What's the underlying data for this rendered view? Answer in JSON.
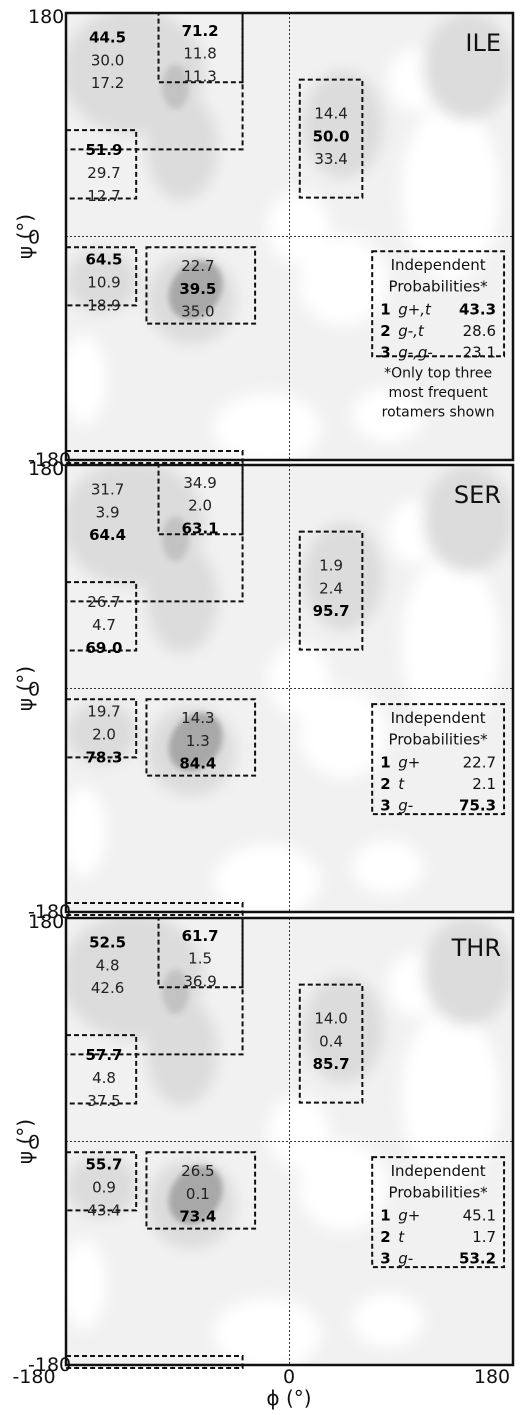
{
  "chart_data": [
    {
      "type": "heatmap",
      "residue": "ILE",
      "x_range": [
        -180,
        180
      ],
      "y_range": [
        -180,
        180
      ],
      "y_ticks": [
        "180",
        "0",
        "-180"
      ],
      "ylabel": "ψ (°)",
      "regions": [
        {
          "values": [
            "44.5",
            "30.0",
            "17.2"
          ],
          "bold": 0
        },
        {
          "values": [
            "71.2",
            "11.8",
            "11.3"
          ],
          "bold": 0
        },
        {
          "values": [
            "51.9",
            "29.7",
            "12.7"
          ],
          "bold": 0
        },
        {
          "values": [
            "14.4",
            "50.0",
            "33.4"
          ],
          "bold": 1
        },
        {
          "values": [
            "64.5",
            "10.9",
            "18.9"
          ],
          "bold": 0
        },
        {
          "values": [
            "22.7",
            "39.5",
            "35.0"
          ],
          "bold": 1
        }
      ],
      "legend": {
        "title_lines": [
          "Independent",
          "Probabilities*"
        ],
        "rows": [
          {
            "num": "1",
            "name": "g+,t",
            "value": "43.3",
            "bold": true
          },
          {
            "num": "2",
            "name": "g-,t",
            "value": "28.6",
            "bold": false
          },
          {
            "num": "3",
            "name": "g-,g-",
            "value": "23.1",
            "bold": false
          }
        ]
      },
      "note": [
        "*Only top three",
        "most frequent",
        "rotamers shown"
      ]
    },
    {
      "type": "heatmap",
      "residue": "SER",
      "x_range": [
        -180,
        180
      ],
      "y_range": [
        -180,
        180
      ],
      "y_ticks": [
        "180",
        "0",
        "-180"
      ],
      "ylabel": "ψ (°)",
      "regions": [
        {
          "values": [
            "31.7",
            "3.9",
            "64.4"
          ],
          "bold": 2
        },
        {
          "values": [
            "34.9",
            "2.0",
            "63.1"
          ],
          "bold": 2
        },
        {
          "values": [
            "26.7",
            "4.7",
            "69.0"
          ],
          "bold": 2
        },
        {
          "values": [
            "1.9",
            "2.4",
            "95.7"
          ],
          "bold": 2
        },
        {
          "values": [
            "19.7",
            "2.0",
            "78.3"
          ],
          "bold": 2
        },
        {
          "values": [
            "14.3",
            "1.3",
            "84.4"
          ],
          "bold": 2
        }
      ],
      "legend": {
        "title_lines": [
          "Independent",
          "Probabilities*"
        ],
        "rows": [
          {
            "num": "1",
            "name": "g+",
            "value": "22.7",
            "bold": false
          },
          {
            "num": "2",
            "name": "t",
            "value": "2.1",
            "bold": false
          },
          {
            "num": "3",
            "name": "g-",
            "value": "75.3",
            "bold": true
          }
        ]
      }
    },
    {
      "type": "heatmap",
      "residue": "THR",
      "x_range": [
        -180,
        180
      ],
      "y_range": [
        -180,
        180
      ],
      "y_ticks": [
        "180",
        "0",
        "-180"
      ],
      "ylabel": "ψ (°)",
      "regions": [
        {
          "values": [
            "52.5",
            "4.8",
            "42.6"
          ],
          "bold": 0
        },
        {
          "values": [
            "61.7",
            "1.5",
            "36.9"
          ],
          "bold": 0
        },
        {
          "values": [
            "57.7",
            "4.8",
            "37.5"
          ],
          "bold": 0
        },
        {
          "values": [
            "14.0",
            "0.4",
            "85.7"
          ],
          "bold": 2
        },
        {
          "values": [
            "55.7",
            "0.9",
            "43.4"
          ],
          "bold": 0
        },
        {
          "values": [
            "26.5",
            "0.1",
            "73.4"
          ],
          "bold": 2
        }
      ],
      "legend": {
        "title_lines": [
          "Independent",
          "Probabilities*"
        ],
        "rows": [
          {
            "num": "1",
            "name": "g+",
            "value": "45.1",
            "bold": false
          },
          {
            "num": "2",
            "name": "t",
            "value": "1.7",
            "bold": false
          },
          {
            "num": "3",
            "name": "g-",
            "value": "53.2",
            "bold": true
          }
        ]
      }
    }
  ],
  "x_axis": {
    "tick_labels": [
      "-180",
      "0",
      "180"
    ],
    "label": "ϕ (°)"
  }
}
